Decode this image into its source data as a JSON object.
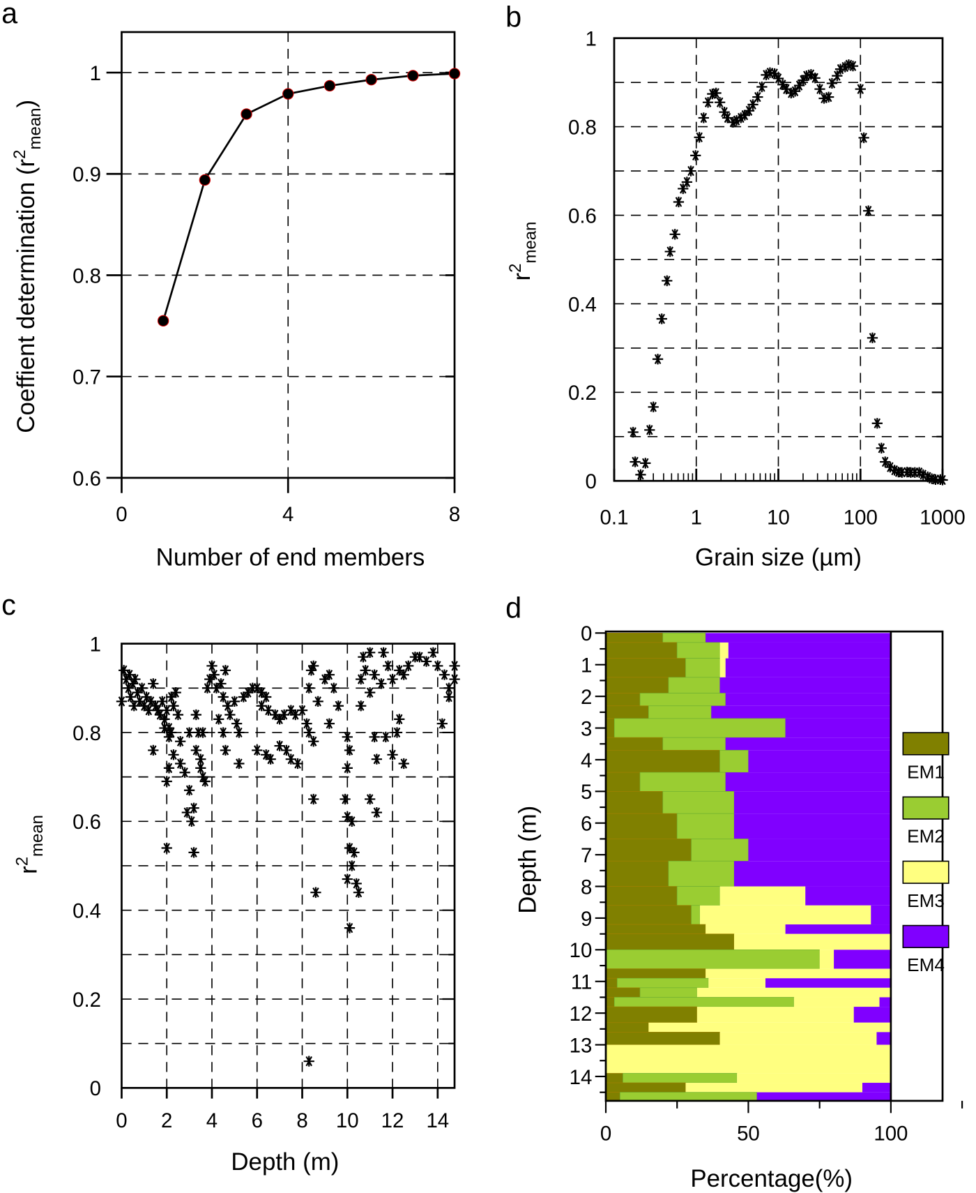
{
  "chart_data": [
    {
      "panel": "a",
      "type": "line",
      "xlabel": "Number of end members",
      "ylabel": {
        "prefix": "Coeffient determination (r",
        "sup": "2",
        "sub": "mean",
        "suffix": ")"
      },
      "xlim": [
        0,
        8
      ],
      "ylim": [
        0.6,
        1.04
      ],
      "xticks": [
        "0",
        "4",
        "8"
      ],
      "yticks": [
        "0.6",
        "0.7",
        "0.8",
        "0.9",
        "1"
      ],
      "grid": true,
      "marker_color": "#000000",
      "marker_edge": "#cc0000",
      "x": [
        1,
        2,
        3,
        4,
        5,
        6,
        7,
        8
      ],
      "y": [
        0.755,
        0.894,
        0.959,
        0.979,
        0.987,
        0.993,
        0.997,
        0.999
      ]
    },
    {
      "panel": "b",
      "type": "scatter",
      "xlabel": "Grain size (µm)",
      "ylabel": {
        "prefix": "r",
        "sup": "2",
        "sub": "mean"
      },
      "xscale": "log",
      "xlim": [
        0.1,
        1000
      ],
      "ylim": [
        0,
        1
      ],
      "xticks": [
        "0.1",
        "1",
        "10",
        "100",
        "1000"
      ],
      "yticks": [
        "0",
        "0.2",
        "0.4",
        "0.6",
        "0.8",
        "1"
      ],
      "grid": true,
      "marker": "asterisk",
      "points": [
        [
          0.17,
          0.11
        ],
        [
          0.18,
          0.043
        ],
        [
          0.21,
          0.014
        ],
        [
          0.24,
          0.04
        ],
        [
          0.27,
          0.115
        ],
        [
          0.3,
          0.167
        ],
        [
          0.34,
          0.275
        ],
        [
          0.38,
          0.366
        ],
        [
          0.44,
          0.452
        ],
        [
          0.48,
          0.518
        ],
        [
          0.55,
          0.557
        ],
        [
          0.61,
          0.63
        ],
        [
          0.69,
          0.66
        ],
        [
          0.77,
          0.675
        ],
        [
          0.86,
          0.7
        ],
        [
          0.98,
          0.735
        ],
        [
          1.09,
          0.776
        ],
        [
          1.23,
          0.82
        ],
        [
          1.39,
          0.855
        ],
        [
          1.57,
          0.874
        ],
        [
          1.74,
          0.876
        ],
        [
          1.94,
          0.855
        ],
        [
          2.2,
          0.833
        ],
        [
          2.4,
          0.82
        ],
        [
          2.8,
          0.81
        ],
        [
          3.1,
          0.814
        ],
        [
          3.5,
          0.82
        ],
        [
          3.9,
          0.826
        ],
        [
          4.4,
          0.836
        ],
        [
          4.9,
          0.85
        ],
        [
          5.6,
          0.867
        ],
        [
          6.3,
          0.89
        ],
        [
          7.1,
          0.917
        ],
        [
          7.9,
          0.922
        ],
        [
          9.0,
          0.92
        ],
        [
          10,
          0.909
        ],
        [
          11.3,
          0.895
        ],
        [
          12.5,
          0.885
        ],
        [
          14.3,
          0.876
        ],
        [
          16,
          0.88
        ],
        [
          18,
          0.893
        ],
        [
          20,
          0.905
        ],
        [
          22,
          0.915
        ],
        [
          25,
          0.918
        ],
        [
          28,
          0.91
        ],
        [
          32,
          0.885
        ],
        [
          36,
          0.864
        ],
        [
          41,
          0.867
        ],
        [
          45,
          0.898
        ],
        [
          52,
          0.915
        ],
        [
          57,
          0.93
        ],
        [
          65,
          0.935
        ],
        [
          72,
          0.94
        ],
        [
          81,
          0.937
        ],
        [
          100,
          0.885
        ],
        [
          110,
          0.775
        ],
        [
          125,
          0.61
        ],
        [
          140,
          0.323
        ],
        [
          160,
          0.13
        ],
        [
          180,
          0.074
        ],
        [
          200,
          0.043
        ],
        [
          230,
          0.031
        ],
        [
          260,
          0.024
        ],
        [
          290,
          0.02
        ],
        [
          320,
          0.019
        ],
        [
          370,
          0.02
        ],
        [
          410,
          0.019
        ],
        [
          460,
          0.019
        ],
        [
          520,
          0.019
        ],
        [
          580,
          0.014
        ],
        [
          660,
          0.009
        ],
        [
          740,
          0.005
        ],
        [
          820,
          0.003
        ],
        [
          940,
          0.003
        ],
        [
          1000,
          0.002
        ]
      ]
    },
    {
      "panel": "c",
      "type": "scatter",
      "xlabel": "Depth (m)",
      "ylabel": {
        "prefix": "r",
        "sup": "2",
        "sub": "mean"
      },
      "xlim": [
        0,
        14.75
      ],
      "ylim": [
        0,
        1
      ],
      "xticks": [
        "0",
        "2",
        "4",
        "6",
        "8",
        "10",
        "12",
        "14"
      ],
      "yticks": [
        "0",
        "0.2",
        "0.4",
        "0.6",
        "0.8",
        "1"
      ],
      "grid": true,
      "marker": "asterisk",
      "points": [
        [
          0.0,
          0.87
        ],
        [
          0.1,
          0.94
        ],
        [
          0.2,
          0.92
        ],
        [
          0.3,
          0.9
        ],
        [
          0.35,
          0.93
        ],
        [
          0.4,
          0.88
        ],
        [
          0.5,
          0.91
        ],
        [
          0.55,
          0.86
        ],
        [
          0.6,
          0.92
        ],
        [
          0.7,
          0.89
        ],
        [
          0.8,
          0.87
        ],
        [
          0.9,
          0.9
        ],
        [
          1.0,
          0.86
        ],
        [
          1.1,
          0.88
        ],
        [
          1.2,
          0.85
        ],
        [
          1.3,
          0.87
        ],
        [
          1.4,
          0.91
        ],
        [
          1.5,
          0.86
        ],
        [
          1.6,
          0.85
        ],
        [
          1.7,
          0.84
        ],
        [
          1.8,
          0.87
        ],
        [
          1.9,
          0.83
        ],
        [
          2.0,
          0.85
        ],
        [
          2.1,
          0.81
        ],
        [
          2.1,
          0.79
        ],
        [
          2.2,
          0.88
        ],
        [
          2.3,
          0.86
        ],
        [
          2.4,
          0.89
        ],
        [
          2.5,
          0.84
        ],
        [
          2.2,
          0.8
        ],
        [
          1.4,
          0.76
        ],
        [
          1.9,
          0.81
        ],
        [
          2.0,
          0.69
        ],
        [
          2.1,
          0.72
        ],
        [
          2.0,
          0.54
        ],
        [
          2.3,
          0.75
        ],
        [
          2.6,
          0.73
        ],
        [
          2.8,
          0.71
        ],
        [
          2.9,
          0.62
        ],
        [
          3.0,
          0.67
        ],
        [
          3.1,
          0.6
        ],
        [
          3.2,
          0.63
        ],
        [
          3.3,
          0.76
        ],
        [
          3.5,
          0.74
        ],
        [
          3.6,
          0.7
        ],
        [
          3.4,
          0.8
        ],
        [
          3.2,
          0.53
        ],
        [
          3.3,
          0.84
        ],
        [
          3.5,
          0.72
        ],
        [
          3.7,
          0.69
        ],
        [
          2.6,
          0.78
        ],
        [
          3.0,
          0.8
        ],
        [
          3.6,
          0.8
        ],
        [
          3.9,
          0.92
        ],
        [
          4.0,
          0.95
        ],
        [
          4.1,
          0.93
        ],
        [
          4.2,
          0.9
        ],
        [
          3.8,
          0.9
        ],
        [
          4.4,
          0.91
        ],
        [
          4.6,
          0.94
        ],
        [
          4.5,
          0.88
        ],
        [
          4.7,
          0.86
        ],
        [
          4.8,
          0.84
        ],
        [
          5.0,
          0.87
        ],
        [
          5.1,
          0.82
        ],
        [
          5.2,
          0.8
        ],
        [
          4.3,
          0.83
        ],
        [
          4.5,
          0.8
        ],
        [
          4.6,
          0.76
        ],
        [
          5.2,
          0.73
        ],
        [
          5.4,
          0.88
        ],
        [
          5.6,
          0.89
        ],
        [
          5.8,
          0.9
        ],
        [
          6.0,
          0.9
        ],
        [
          6.2,
          0.89
        ],
        [
          6.4,
          0.88
        ],
        [
          6.5,
          0.85
        ],
        [
          6.2,
          0.86
        ],
        [
          6.0,
          0.76
        ],
        [
          6.4,
          0.75
        ],
        [
          6.6,
          0.74
        ],
        [
          6.8,
          0.84
        ],
        [
          7.0,
          0.83
        ],
        [
          7.2,
          0.84
        ],
        [
          7.5,
          0.85
        ],
        [
          7.7,
          0.84
        ],
        [
          8.0,
          0.85
        ],
        [
          8.2,
          0.82
        ],
        [
          7.0,
          0.77
        ],
        [
          7.3,
          0.76
        ],
        [
          7.5,
          0.74
        ],
        [
          7.8,
          0.73
        ],
        [
          8.3,
          0.8
        ],
        [
          8.5,
          0.78
        ],
        [
          8.4,
          0.94
        ],
        [
          8.5,
          0.95
        ],
        [
          8.3,
          0.9
        ],
        [
          8.7,
          0.87
        ],
        [
          9.0,
          0.92
        ],
        [
          9.2,
          0.93
        ],
        [
          9.4,
          0.9
        ],
        [
          9.6,
          0.86
        ],
        [
          9.2,
          0.82
        ],
        [
          8.5,
          0.65
        ],
        [
          8.6,
          0.44
        ],
        [
          8.3,
          0.06
        ],
        [
          10.0,
          0.79
        ],
        [
          10.1,
          0.76
        ],
        [
          10.0,
          0.72
        ],
        [
          9.9,
          0.65
        ],
        [
          10.0,
          0.61
        ],
        [
          10.2,
          0.6
        ],
        [
          10.1,
          0.54
        ],
        [
          10.3,
          0.53
        ],
        [
          10.0,
          0.47
        ],
        [
          10.2,
          0.5
        ],
        [
          10.4,
          0.46
        ],
        [
          10.5,
          0.44
        ],
        [
          10.1,
          0.36
        ],
        [
          10.6,
          0.92
        ],
        [
          10.8,
          0.94
        ],
        [
          10.7,
          0.97
        ],
        [
          11.0,
          0.98
        ],
        [
          11.2,
          0.93
        ],
        [
          11.5,
          0.91
        ],
        [
          11.0,
          0.89
        ],
        [
          10.6,
          0.86
        ],
        [
          11.6,
          0.98
        ],
        [
          11.8,
          0.95
        ],
        [
          12.0,
          0.92
        ],
        [
          12.3,
          0.94
        ],
        [
          12.5,
          0.93
        ],
        [
          12.7,
          0.95
        ],
        [
          13.0,
          0.97
        ],
        [
          13.2,
          0.97
        ],
        [
          13.5,
          0.96
        ],
        [
          13.8,
          0.98
        ],
        [
          14.0,
          0.95
        ],
        [
          14.3,
          0.93
        ],
        [
          14.5,
          0.9
        ],
        [
          14.8,
          0.95
        ],
        [
          14.8,
          0.92
        ],
        [
          14.5,
          0.88
        ],
        [
          14.2,
          0.82
        ],
        [
          11.0,
          0.65
        ],
        [
          11.3,
          0.62
        ],
        [
          11.2,
          0.79
        ],
        [
          11.7,
          0.79
        ],
        [
          12.2,
          0.8
        ],
        [
          12.0,
          0.75
        ],
        [
          12.3,
          0.83
        ],
        [
          12.5,
          0.73
        ],
        [
          11.3,
          0.74
        ]
      ]
    },
    {
      "panel": "d",
      "type": "bar",
      "orientation": "horizontal-stacked",
      "xlabel": "Percentage(%)",
      "ylabel": "Depth (m)",
      "xlim": [
        0,
        100
      ],
      "ylim": [
        0,
        14.75
      ],
      "xticks": [
        "0",
        "50",
        "100"
      ],
      "yticks": [
        "0",
        "1",
        "2",
        "3",
        "4",
        "5",
        "6",
        "7",
        "8",
        "9",
        "10",
        "11",
        "12",
        "13",
        "14"
      ],
      "legend": "right",
      "series": [
        {
          "name": "EM1",
          "color": "#808000"
        },
        {
          "name": "EM2",
          "color": "#9acd32"
        },
        {
          "name": "EM3",
          "color": "#ffff80"
        },
        {
          "name": "EM4",
          "color": "#8000ff"
        }
      ],
      "layers_columns": [
        "depth_top",
        "depth_bottom",
        "EM1",
        "EM2",
        "EM3",
        "EM4"
      ],
      "layers": [
        [
          0,
          0.3,
          20,
          15,
          0,
          65
        ],
        [
          0.3,
          0.8,
          25,
          15,
          3,
          57
        ],
        [
          0.8,
          1.4,
          28,
          12,
          2,
          58
        ],
        [
          1.4,
          1.9,
          22,
          18,
          0,
          60
        ],
        [
          1.9,
          2.3,
          12,
          30,
          0,
          58
        ],
        [
          2.3,
          2.7,
          15,
          22,
          0,
          63
        ],
        [
          2.7,
          3.3,
          3,
          60,
          0,
          37
        ],
        [
          3.3,
          3.7,
          20,
          22,
          0,
          58
        ],
        [
          3.7,
          4.4,
          40,
          10,
          0,
          50
        ],
        [
          4.4,
          5.0,
          12,
          30,
          0,
          58
        ],
        [
          5.0,
          5.7,
          20,
          25,
          0,
          55
        ],
        [
          5.7,
          6.5,
          25,
          20,
          0,
          55
        ],
        [
          6.5,
          7.2,
          30,
          20,
          0,
          50
        ],
        [
          7.2,
          8.0,
          22,
          23,
          0,
          55
        ],
        [
          8.0,
          8.6,
          25,
          15,
          30,
          30
        ],
        [
          8.6,
          9.2,
          30,
          3,
          60,
          7
        ],
        [
          9.2,
          9.5,
          35,
          0,
          28,
          37
        ],
        [
          9.5,
          10.0,
          45,
          0,
          55,
          0
        ],
        [
          10.0,
          10.6,
          0,
          75,
          5,
          20
        ],
        [
          10.6,
          10.9,
          35,
          0,
          65,
          0
        ],
        [
          10.9,
          11.2,
          4,
          32,
          20,
          44
        ],
        [
          11.2,
          11.5,
          12,
          20,
          68,
          0
        ],
        [
          11.5,
          11.8,
          3,
          63,
          30,
          4
        ],
        [
          11.8,
          12.3,
          32,
          0,
          55,
          13
        ],
        [
          12.3,
          12.6,
          15,
          0,
          85,
          0
        ],
        [
          12.6,
          13.0,
          40,
          0,
          55,
          5
        ],
        [
          13.0,
          13.9,
          0,
          0,
          100,
          0
        ],
        [
          13.9,
          14.2,
          6,
          40,
          54,
          0
        ],
        [
          14.2,
          14.5,
          28,
          0,
          62,
          10
        ],
        [
          14.5,
          14.75,
          5,
          48,
          0,
          47
        ]
      ]
    }
  ],
  "panel_labels": [
    "a",
    "b",
    "c",
    "d"
  ]
}
